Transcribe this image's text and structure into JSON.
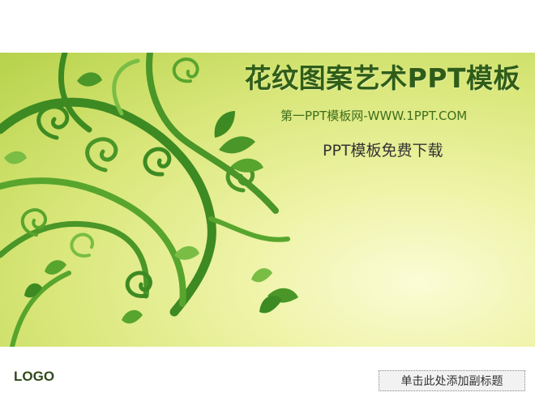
{
  "slide": {
    "title": "花纹图案艺术PPT模板",
    "website_line": "第一PPT模板网-WWW.1PPT.COM",
    "promo_line": "PPT模板免费下载",
    "logo_text": "LOGO",
    "subtitle_placeholder": "单击此处添加副标题"
  },
  "colors": {
    "title_green": "#2f5d19",
    "vine_dark": "#3d8a22",
    "vine_mid": "#58a52e",
    "vine_light": "#79bd45",
    "background_light": "#fbfcd6",
    "background_green": "#b6d24a"
  },
  "decoration": {
    "artwork": "green-floral-vine-swirls-icon"
  }
}
